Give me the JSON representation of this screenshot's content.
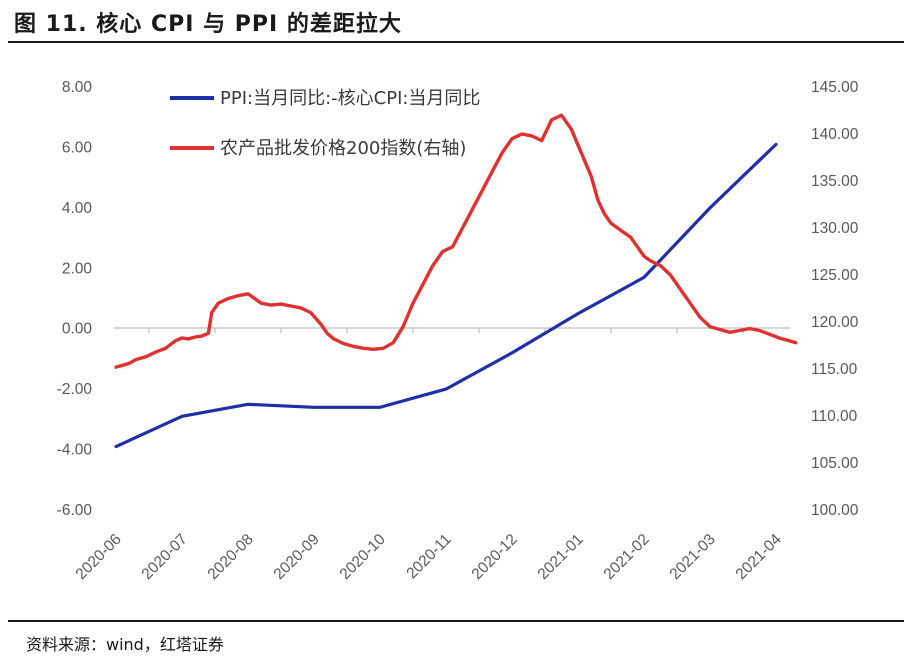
{
  "header": {
    "title": "图 11. 核心 CPI 与 PPI 的差距拉大"
  },
  "footer": {
    "source": "资料来源：wind，红塔证券"
  },
  "chart_data": {
    "type": "line",
    "title": "图 11. 核心 CPI 与 PPI 的差距拉大",
    "x_ticks": [
      "2020-06",
      "2020-07",
      "2020-08",
      "2020-09",
      "2020-10",
      "2020-11",
      "2020-12",
      "2021-01",
      "2021-02",
      "2021-03",
      "2021-04"
    ],
    "y_left": {
      "ticks": [
        "8.00",
        "6.00",
        "4.00",
        "2.00",
        "0.00",
        "-2.00",
        "-4.00",
        "-6.00"
      ],
      "lim": [
        -6,
        8
      ]
    },
    "y_right": {
      "ticks": [
        "145.00",
        "140.00",
        "135.00",
        "130.00",
        "125.00",
        "120.00",
        "115.00",
        "110.00",
        "105.00",
        "100.00"
      ],
      "lim": [
        100,
        145
      ]
    },
    "legend": [
      {
        "label": "PPI:当月同比:-核心CPI:当月同比",
        "color": "#1f2fa8"
      },
      {
        "label": "农产品批发价格200指数(右轴)",
        "color": "#e03030"
      }
    ],
    "series": [
      {
        "name": "PPI:当月同比:-核心CPI:当月同比",
        "axis": "left",
        "color": "#1f2fa8",
        "x": [
          0,
          1,
          2,
          3,
          4,
          5,
          6,
          7,
          8,
          9,
          10
        ],
        "y": [
          -3.9,
          -2.9,
          -2.5,
          -2.6,
          -2.6,
          -2.0,
          -0.8,
          0.5,
          1.7,
          4.0,
          6.1
        ]
      },
      {
        "name": "农产品批发价格200指数(右轴)",
        "axis": "right",
        "color": "#e03030",
        "x": [
          0,
          0.1,
          0.2,
          0.3,
          0.45,
          0.6,
          0.75,
          0.9,
          1.0,
          1.1,
          1.2,
          1.3,
          1.4,
          1.45,
          1.55,
          1.7,
          1.85,
          2.0,
          2.1,
          2.2,
          2.35,
          2.5,
          2.65,
          2.8,
          2.95,
          3.1,
          3.2,
          3.3,
          3.45,
          3.6,
          3.75,
          3.9,
          4.05,
          4.2,
          4.35,
          4.5,
          4.65,
          4.8,
          4.95,
          5.1,
          5.25,
          5.4,
          5.55,
          5.7,
          5.85,
          6.0,
          6.15,
          6.3,
          6.45,
          6.6,
          6.75,
          6.9,
          7.05,
          7.2,
          7.3,
          7.4,
          7.5,
          7.6,
          7.7,
          7.8,
          7.9,
          8.0,
          8.1,
          8.25,
          8.4,
          8.55,
          8.7,
          8.85,
          9.0,
          9.15,
          9.3,
          9.45,
          9.6,
          9.75,
          9.9,
          10.05,
          10.2,
          10.3
        ],
        "y": [
          115.2,
          115.4,
          115.6,
          116.0,
          116.3,
          116.8,
          117.2,
          118.0,
          118.3,
          118.2,
          118.4,
          118.5,
          118.8,
          121.0,
          122.0,
          122.5,
          122.8,
          123.0,
          122.5,
          122.0,
          121.8,
          121.9,
          121.7,
          121.5,
          121.0,
          119.8,
          118.8,
          118.2,
          117.7,
          117.4,
          117.2,
          117.1,
          117.2,
          117.8,
          119.5,
          122.0,
          124.0,
          126.0,
          127.5,
          128.0,
          130.0,
          132.0,
          134.0,
          136.0,
          138.0,
          139.5,
          140.0,
          139.8,
          139.3,
          141.5,
          142.0,
          140.5,
          138.0,
          135.5,
          133.0,
          131.5,
          130.5,
          130.0,
          129.5,
          129.0,
          128.0,
          127.0,
          126.5,
          126.0,
          125.0,
          123.5,
          122.0,
          120.5,
          119.5,
          119.2,
          118.9,
          119.1,
          119.3,
          119.1,
          118.7,
          118.3,
          118.0,
          117.8
        ]
      }
    ]
  }
}
